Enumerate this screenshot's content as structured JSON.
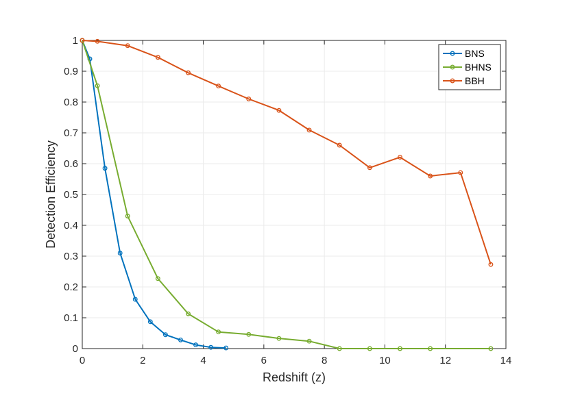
{
  "chart_data": {
    "type": "line",
    "title": "",
    "xlabel": "Redshift (z)",
    "ylabel": "Detection Efficiency",
    "xlim": [
      0,
      14
    ],
    "ylim": [
      0,
      1
    ],
    "xticks": [
      0,
      2,
      4,
      6,
      8,
      10,
      12,
      14
    ],
    "yticks": [
      0,
      0.1,
      0.2,
      0.3,
      0.4,
      0.5,
      0.6,
      0.7,
      0.8,
      0.9,
      1
    ],
    "grid": true,
    "legend_position": "top-right",
    "series": [
      {
        "name": "BNS",
        "color": "#0072BD",
        "x": [
          0,
          0.25,
          0.75,
          1.25,
          1.75,
          2.25,
          2.75,
          3.25,
          3.75,
          4.25,
          4.75
        ],
        "y": [
          1.0,
          0.94,
          0.585,
          0.31,
          0.16,
          0.087,
          0.045,
          0.028,
          0.012,
          0.004,
          0.002
        ]
      },
      {
        "name": "BHNS",
        "color": "#77AC30",
        "x": [
          0,
          0.5,
          1.5,
          2.5,
          3.5,
          4.5,
          5.5,
          6.5,
          7.5,
          8.5,
          9.5,
          10.5,
          11.5,
          13.5
        ],
        "y": [
          1.0,
          0.853,
          0.43,
          0.227,
          0.113,
          0.054,
          0.046,
          0.033,
          0.024,
          0.0,
          0.0,
          0.0,
          0.0,
          0.0
        ]
      },
      {
        "name": "BBH",
        "color": "#D95319",
        "x": [
          0,
          0.5,
          1.5,
          2.5,
          3.5,
          4.5,
          5.5,
          6.5,
          7.5,
          8.5,
          9.5,
          10.5,
          11.5,
          12.5,
          13.5
        ],
        "y": [
          1.0,
          0.997,
          0.983,
          0.945,
          0.895,
          0.852,
          0.81,
          0.773,
          0.709,
          0.66,
          0.587,
          0.621,
          0.56,
          0.571,
          0.273
        ]
      }
    ]
  }
}
